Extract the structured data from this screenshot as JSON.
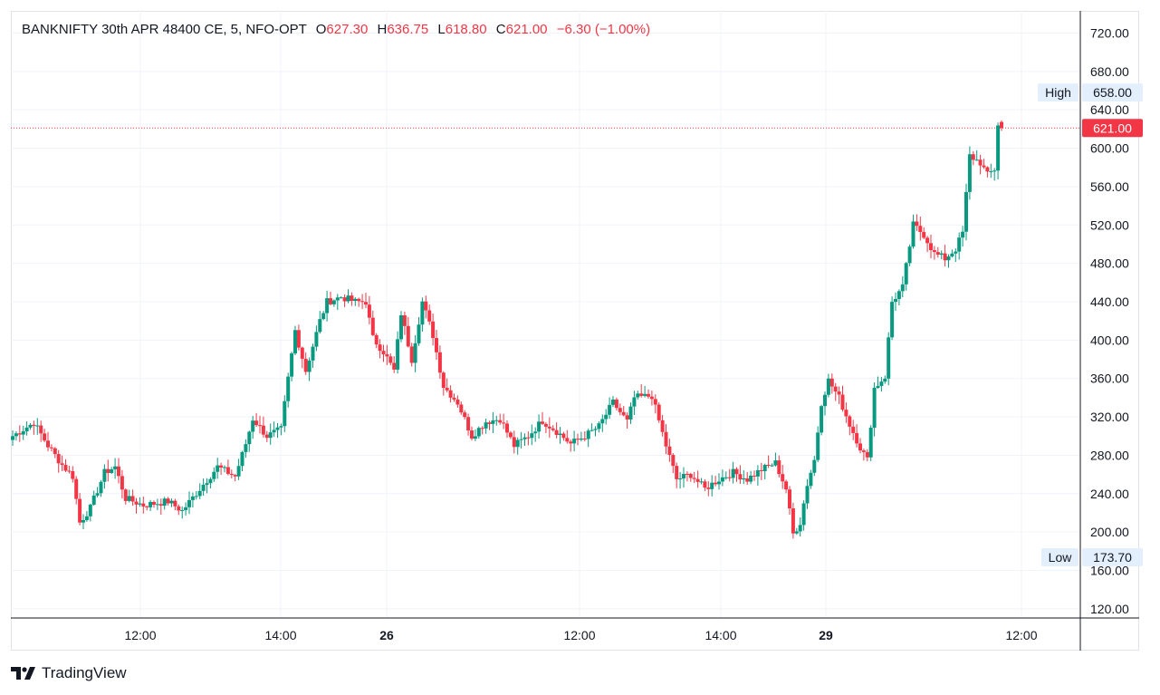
{
  "legend": {
    "symbol": "BANKNIFTY 30th APR 48400 CE, 5, NFO-OPT",
    "o_label": "O",
    "o": "627.30",
    "h_label": "H",
    "h": "636.75",
    "l_label": "L",
    "l": "618.80",
    "c_label": "C",
    "c": "621.00",
    "change": "−6.30 (−1.00%)"
  },
  "brand": {
    "name": "TradingView",
    "logo": "tradingview-logo-icon"
  },
  "colors": {
    "up": "#089981",
    "down": "#f23645",
    "grid": "#f0f3fa",
    "axis": "#131722",
    "badge_bg": "#e3effd"
  },
  "chart_data": {
    "type": "candlestick",
    "title": "BANKNIFTY 30th APR 48400 CE, 5, NFO-OPT",
    "y_ticks": [
      "120.00",
      "160.00",
      "200.00",
      "240.00",
      "280.00",
      "320.00",
      "360.00",
      "400.00",
      "440.00",
      "480.00",
      "520.00",
      "560.00",
      "600.00",
      "640.00",
      "680.00",
      "720.00"
    ],
    "x_ticks": [
      {
        "label": "12:00",
        "bold": false
      },
      {
        "label": "14:00",
        "bold": false
      },
      {
        "label": "26",
        "bold": true
      },
      {
        "label": "12:00",
        "bold": false
      },
      {
        "label": "14:00",
        "bold": false
      },
      {
        "label": "29",
        "bold": true
      },
      {
        "label": "12:00",
        "bold": false
      }
    ],
    "ylim": [
      120,
      720
    ],
    "last_price": {
      "value": 621.0,
      "label": "621.00"
    },
    "high": {
      "label": "High",
      "value": "658.00"
    },
    "low": {
      "label": "Low",
      "value": "173.70"
    },
    "close_path": [
      {
        "i": 0,
        "v": 300
      },
      {
        "i": 6,
        "v": 314
      },
      {
        "i": 10,
        "v": 290
      },
      {
        "i": 14,
        "v": 270
      },
      {
        "i": 17,
        "v": 258
      },
      {
        "i": 19,
        "v": 210
      },
      {
        "i": 22,
        "v": 225
      },
      {
        "i": 26,
        "v": 262
      },
      {
        "i": 29,
        "v": 268
      },
      {
        "i": 32,
        "v": 235
      },
      {
        "i": 37,
        "v": 228
      },
      {
        "i": 44,
        "v": 232
      },
      {
        "i": 48,
        "v": 222
      },
      {
        "i": 53,
        "v": 245
      },
      {
        "i": 58,
        "v": 268
      },
      {
        "i": 63,
        "v": 258
      },
      {
        "i": 66,
        "v": 292
      },
      {
        "i": 68,
        "v": 318
      },
      {
        "i": 72,
        "v": 300
      },
      {
        "i": 76,
        "v": 307
      },
      {
        "i": 78,
        "v": 360
      },
      {
        "i": 80,
        "v": 410
      },
      {
        "i": 83,
        "v": 368
      },
      {
        "i": 87,
        "v": 420
      },
      {
        "i": 89,
        "v": 440
      },
      {
        "i": 93,
        "v": 445
      },
      {
        "i": 97,
        "v": 440
      },
      {
        "i": 100,
        "v": 440
      },
      {
        "i": 102,
        "v": 402
      },
      {
        "i": 105,
        "v": 388
      },
      {
        "i": 108,
        "v": 368
      },
      {
        "i": 110,
        "v": 428
      },
      {
        "i": 113,
        "v": 380
      },
      {
        "i": 116,
        "v": 440
      },
      {
        "i": 119,
        "v": 405
      },
      {
        "i": 122,
        "v": 352
      },
      {
        "i": 126,
        "v": 335
      },
      {
        "i": 130,
        "v": 300
      },
      {
        "i": 134,
        "v": 315
      },
      {
        "i": 138,
        "v": 318
      },
      {
        "i": 142,
        "v": 290
      },
      {
        "i": 146,
        "v": 300
      },
      {
        "i": 150,
        "v": 316
      },
      {
        "i": 154,
        "v": 305
      },
      {
        "i": 158,
        "v": 292
      },
      {
        "i": 162,
        "v": 300
      },
      {
        "i": 166,
        "v": 310
      },
      {
        "i": 170,
        "v": 335
      },
      {
        "i": 174,
        "v": 315
      },
      {
        "i": 176,
        "v": 340
      },
      {
        "i": 181,
        "v": 342
      },
      {
        "i": 185,
        "v": 290
      },
      {
        "i": 188,
        "v": 255
      },
      {
        "i": 192,
        "v": 260
      },
      {
        "i": 196,
        "v": 245
      },
      {
        "i": 200,
        "v": 255
      },
      {
        "i": 204,
        "v": 262
      },
      {
        "i": 208,
        "v": 255
      },
      {
        "i": 212,
        "v": 265
      },
      {
        "i": 216,
        "v": 272
      },
      {
        "i": 219,
        "v": 245
      },
      {
        "i": 221,
        "v": 198
      },
      {
        "i": 223,
        "v": 210
      },
      {
        "i": 225,
        "v": 250
      },
      {
        "i": 227,
        "v": 275
      },
      {
        "i": 229,
        "v": 335
      },
      {
        "i": 231,
        "v": 358
      },
      {
        "i": 234,
        "v": 340
      },
      {
        "i": 237,
        "v": 312
      },
      {
        "i": 240,
        "v": 288
      },
      {
        "i": 242,
        "v": 275
      },
      {
        "i": 244,
        "v": 350
      },
      {
        "i": 247,
        "v": 362
      },
      {
        "i": 249,
        "v": 440
      },
      {
        "i": 252,
        "v": 455
      },
      {
        "i": 255,
        "v": 520
      },
      {
        "i": 258,
        "v": 510
      },
      {
        "i": 261,
        "v": 490
      },
      {
        "i": 264,
        "v": 485
      },
      {
        "i": 267,
        "v": 495
      },
      {
        "i": 269,
        "v": 512
      },
      {
        "i": 271,
        "v": 592
      },
      {
        "i": 274,
        "v": 585
      },
      {
        "i": 276,
        "v": 572
      },
      {
        "i": 278,
        "v": 578
      },
      {
        "i": 279,
        "v": 625
      },
      {
        "i": 280,
        "v": 621
      }
    ]
  }
}
